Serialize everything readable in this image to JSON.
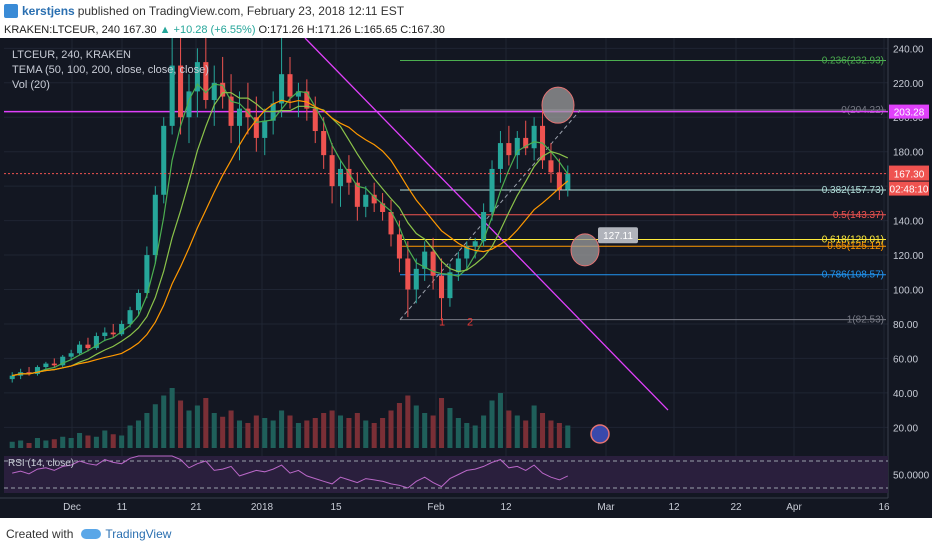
{
  "header": {
    "author": "kerstjens",
    "published_text": "published on TradingView.com, February 23, 2018 12:11 EST"
  },
  "symbol_bar": {
    "symbol": "KRAKEN:LTCEUR, 240",
    "last": "167.30",
    "change": "▲ +10.28 (+6.55%)",
    "o": "O:171.26",
    "h": "H:171.26",
    "l": "L:165.65",
    "c": "C:167.30"
  },
  "legend": {
    "line1": "LTCEUR, 240, KRAKEN",
    "line2": "TEMA (50, 100, 200, close, close, close)",
    "line3": "Vol (20)"
  },
  "rsi": {
    "label": "RSI (14, close)",
    "level_label": "50.0000"
  },
  "footer": {
    "created_with": "Created with",
    "brand": "TradingView"
  },
  "colors": {
    "background": "#131722",
    "up_candle": "#26a69a",
    "down_candle": "#ef5350",
    "trendline": "#e040fb",
    "fib_0236": "#4caf50",
    "fib_0382": "#b2dfdb",
    "fib_05": "#ef5350",
    "fib_0618": "#ffeb3b",
    "fib_065": "#ff9800",
    "fib_0786": "#2196f3"
  },
  "chart_data": {
    "type": "candlestick",
    "price_axis": {
      "ticks": [
        240,
        220,
        200,
        180,
        160,
        140,
        120,
        100,
        80,
        60,
        40,
        20
      ],
      "tick_labels": [
        "240.00",
        "220.00",
        "200.00",
        "180.00",
        "160.00",
        "140.00",
        "120.00",
        "100.00",
        "80.00",
        "60.00",
        "40.00",
        "20.00"
      ],
      "ylim": [
        8,
        246
      ]
    },
    "time_axis": {
      "labels": [
        "Dec",
        "11",
        "21",
        "2018",
        "15",
        "Feb",
        "12",
        "Mar",
        "12",
        "22",
        "Apr",
        "16"
      ]
    },
    "current_price": {
      "value": 167.3,
      "label": "167.30",
      "countdown": "02:48:10"
    },
    "resistance_tag": {
      "value": 203.28,
      "label": "203.28"
    },
    "fibonacci": [
      {
        "level": "0.236",
        "price": 232.93,
        "label": "0.236(232.93)",
        "color": "#4caf50"
      },
      {
        "level": "0",
        "price": 204.22,
        "label": "0(204.22)",
        "color": "#787b86"
      },
      {
        "level": "0.382",
        "price": 157.73,
        "label": "0.382(157.73)",
        "color": "#b2dfdb"
      },
      {
        "level": "0.5",
        "price": 143.37,
        "label": "0.5(143.37)",
        "color": "#ef5350"
      },
      {
        "level": "0.618",
        "price": 129.01,
        "label": "0.618(129.01)",
        "color": "#ffeb3b"
      },
      {
        "level": "0.65",
        "price": 125.12,
        "label": "0.65(125.12)",
        "color": "#ff9800"
      },
      {
        "level": "0.786",
        "price": 108.57,
        "label": "0.786(108.57)",
        "color": "#2196f3"
      },
      {
        "level": "1",
        "price": 82.53,
        "label": "1(82.53)",
        "color": "#787b86"
      }
    ],
    "annotations": [
      {
        "text": "1",
        "price": 79
      },
      {
        "text": "2",
        "price": 79
      },
      {
        "text": "127.11",
        "price": 127.11
      }
    ],
    "candles": [
      {
        "o": 48,
        "h": 52,
        "l": 46,
        "c": 50
      },
      {
        "o": 50,
        "h": 54,
        "l": 48,
        "c": 52
      },
      {
        "o": 52,
        "h": 55,
        "l": 50,
        "c": 51
      },
      {
        "o": 51,
        "h": 56,
        "l": 50,
        "c": 55
      },
      {
        "o": 55,
        "h": 58,
        "l": 53,
        "c": 57
      },
      {
        "o": 57,
        "h": 60,
        "l": 55,
        "c": 56
      },
      {
        "o": 56,
        "h": 62,
        "l": 55,
        "c": 61
      },
      {
        "o": 61,
        "h": 65,
        "l": 59,
        "c": 63
      },
      {
        "o": 63,
        "h": 70,
        "l": 62,
        "c": 68
      },
      {
        "o": 68,
        "h": 72,
        "l": 64,
        "c": 66
      },
      {
        "o": 66,
        "h": 75,
        "l": 65,
        "c": 73
      },
      {
        "o": 73,
        "h": 78,
        "l": 70,
        "c": 75
      },
      {
        "o": 75,
        "h": 80,
        "l": 72,
        "c": 74
      },
      {
        "o": 74,
        "h": 82,
        "l": 73,
        "c": 80
      },
      {
        "o": 80,
        "h": 90,
        "l": 78,
        "c": 88
      },
      {
        "o": 88,
        "h": 100,
        "l": 85,
        "c": 98
      },
      {
        "o": 98,
        "h": 125,
        "l": 95,
        "c": 120
      },
      {
        "o": 120,
        "h": 160,
        "l": 115,
        "c": 155
      },
      {
        "o": 155,
        "h": 200,
        "l": 150,
        "c": 195
      },
      {
        "o": 195,
        "h": 246,
        "l": 190,
        "c": 230
      },
      {
        "o": 230,
        "h": 246,
        "l": 190,
        "c": 200
      },
      {
        "o": 200,
        "h": 225,
        "l": 185,
        "c": 215
      },
      {
        "o": 215,
        "h": 240,
        "l": 200,
        "c": 232
      },
      {
        "o": 232,
        "h": 246,
        "l": 205,
        "c": 210
      },
      {
        "o": 210,
        "h": 230,
        "l": 195,
        "c": 220
      },
      {
        "o": 220,
        "h": 235,
        "l": 205,
        "c": 212
      },
      {
        "o": 212,
        "h": 225,
        "l": 185,
        "c": 195
      },
      {
        "o": 195,
        "h": 215,
        "l": 175,
        "c": 205
      },
      {
        "o": 205,
        "h": 220,
        "l": 190,
        "c": 200
      },
      {
        "o": 200,
        "h": 212,
        "l": 180,
        "c": 188
      },
      {
        "o": 188,
        "h": 205,
        "l": 178,
        "c": 198
      },
      {
        "o": 198,
        "h": 215,
        "l": 190,
        "c": 208
      },
      {
        "o": 208,
        "h": 246,
        "l": 200,
        "c": 225
      },
      {
        "o": 225,
        "h": 235,
        "l": 205,
        "c": 212
      },
      {
        "o": 212,
        "h": 220,
        "l": 200,
        "c": 215
      },
      {
        "o": 215,
        "h": 222,
        "l": 198,
        "c": 205
      },
      {
        "o": 205,
        "h": 212,
        "l": 185,
        "c": 192
      },
      {
        "o": 192,
        "h": 200,
        "l": 170,
        "c": 178
      },
      {
        "o": 178,
        "h": 185,
        "l": 150,
        "c": 160
      },
      {
        "o": 160,
        "h": 175,
        "l": 148,
        "c": 170
      },
      {
        "o": 170,
        "h": 178,
        "l": 155,
        "c": 162
      },
      {
        "o": 162,
        "h": 168,
        "l": 140,
        "c": 148
      },
      {
        "o": 148,
        "h": 160,
        "l": 142,
        "c": 155
      },
      {
        "o": 155,
        "h": 162,
        "l": 145,
        "c": 150
      },
      {
        "o": 150,
        "h": 156,
        "l": 140,
        "c": 145
      },
      {
        "o": 145,
        "h": 152,
        "l": 125,
        "c": 132
      },
      {
        "o": 132,
        "h": 140,
        "l": 110,
        "c": 118
      },
      {
        "o": 118,
        "h": 128,
        "l": 84,
        "c": 100
      },
      {
        "o": 100,
        "h": 118,
        "l": 92,
        "c": 112
      },
      {
        "o": 112,
        "h": 128,
        "l": 105,
        "c": 122
      },
      {
        "o": 122,
        "h": 130,
        "l": 100,
        "c": 108
      },
      {
        "o": 108,
        "h": 118,
        "l": 82,
        "c": 95
      },
      {
        "o": 95,
        "h": 115,
        "l": 90,
        "c": 110
      },
      {
        "o": 110,
        "h": 122,
        "l": 105,
        "c": 118
      },
      {
        "o": 118,
        "h": 128,
        "l": 112,
        "c": 125
      },
      {
        "o": 125,
        "h": 130,
        "l": 118,
        "c": 128
      },
      {
        "o": 128,
        "h": 150,
        "l": 125,
        "c": 145
      },
      {
        "o": 145,
        "h": 175,
        "l": 140,
        "c": 170
      },
      {
        "o": 170,
        "h": 192,
        "l": 162,
        "c": 185
      },
      {
        "o": 185,
        "h": 195,
        "l": 172,
        "c": 178
      },
      {
        "o": 178,
        "h": 192,
        "l": 170,
        "c": 188
      },
      {
        "o": 188,
        "h": 198,
        "l": 178,
        "c": 182
      },
      {
        "o": 182,
        "h": 200,
        "l": 175,
        "c": 195
      },
      {
        "o": 195,
        "h": 204,
        "l": 170,
        "c": 175
      },
      {
        "o": 175,
        "h": 185,
        "l": 162,
        "c": 168
      },
      {
        "o": 168,
        "h": 176,
        "l": 152,
        "c": 158
      },
      {
        "o": 158,
        "h": 172,
        "l": 154,
        "c": 167.3
      }
    ],
    "volume": [
      5,
      6,
      4,
      8,
      6,
      7,
      9,
      8,
      12,
      10,
      9,
      14,
      11,
      10,
      18,
      22,
      28,
      35,
      42,
      48,
      38,
      30,
      34,
      40,
      28,
      25,
      30,
      22,
      20,
      26,
      24,
      22,
      30,
      26,
      20,
      22,
      24,
      28,
      30,
      26,
      24,
      28,
      22,
      20,
      24,
      30,
      36,
      42,
      34,
      28,
      26,
      40,
      32,
      24,
      20,
      18,
      26,
      38,
      44,
      30,
      26,
      22,
      34,
      28,
      22,
      20,
      18
    ],
    "rsi": [
      52,
      55,
      51,
      58,
      60,
      56,
      62,
      64,
      70,
      66,
      64,
      72,
      68,
      66,
      74,
      78,
      82,
      86,
      88,
      90,
      72,
      60,
      66,
      70,
      56,
      58,
      62,
      48,
      52,
      56,
      54,
      58,
      64,
      52,
      56,
      48,
      44,
      40,
      36,
      46,
      42,
      38,
      44,
      42,
      40,
      36,
      34,
      30,
      40,
      46,
      38,
      32,
      44,
      50,
      56,
      58,
      62,
      68,
      72,
      60,
      62,
      56,
      64,
      52,
      46,
      42,
      48
    ]
  }
}
